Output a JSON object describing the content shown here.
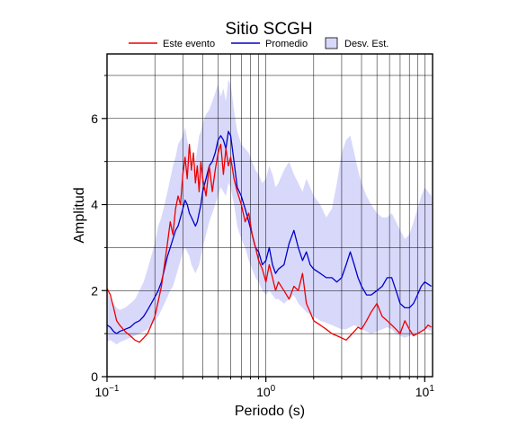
{
  "chart_data": {
    "type": "line",
    "title": "Sitio SCGH",
    "xlabel": "Periodo (s)",
    "ylabel": "Amplitud",
    "xscale": "log",
    "xlim": [
      0.1,
      11.2
    ],
    "ylim": [
      0,
      7.5
    ],
    "grid": true,
    "legend_position": "top",
    "x_ticks": [
      {
        "value": 0.1,
        "base": "10",
        "exp": "−1"
      },
      {
        "value": 1,
        "base": "10",
        "exp": "0"
      },
      {
        "value": 10,
        "base": "10",
        "exp": "1"
      }
    ],
    "y_ticks": [
      0,
      2,
      4,
      6
    ],
    "legend": {
      "event": "Este evento",
      "average": "Promedio",
      "std": "Desv. Est."
    },
    "colors": {
      "event": "#ee0000",
      "average": "#0000cc",
      "std_fill": "#d8d8fb",
      "std_stroke": "#000000"
    },
    "series": [
      {
        "name": "Este evento",
        "x": [
          0.1,
          0.105,
          0.11,
          0.115,
          0.12,
          0.13,
          0.14,
          0.15,
          0.16,
          0.17,
          0.18,
          0.19,
          0.2,
          0.21,
          0.22,
          0.23,
          0.24,
          0.25,
          0.26,
          0.27,
          0.28,
          0.29,
          0.3,
          0.31,
          0.32,
          0.33,
          0.34,
          0.35,
          0.36,
          0.37,
          0.38,
          0.39,
          0.4,
          0.42,
          0.44,
          0.46,
          0.48,
          0.5,
          0.52,
          0.54,
          0.56,
          0.58,
          0.6,
          0.63,
          0.66,
          0.7,
          0.74,
          0.78,
          0.82,
          0.86,
          0.9,
          0.95,
          1.0,
          1.05,
          1.1,
          1.15,
          1.2,
          1.3,
          1.4,
          1.5,
          1.6,
          1.7,
          1.8,
          1.9,
          2.0,
          2.2,
          2.4,
          2.6,
          2.8,
          3.0,
          3.2,
          3.4,
          3.6,
          3.8,
          4.0,
          4.3,
          4.6,
          5.0,
          5.4,
          5.8,
          6.2,
          6.6,
          7.0,
          7.5,
          8.0,
          8.5,
          9.0,
          9.5,
          10.0,
          10.5,
          11.0
        ],
        "values": [
          2.05,
          1.9,
          1.6,
          1.3,
          1.2,
          1.05,
          0.95,
          0.85,
          0.8,
          0.9,
          1.0,
          1.2,
          1.4,
          1.75,
          2.1,
          2.6,
          3.1,
          3.6,
          3.3,
          3.9,
          4.2,
          4.0,
          4.7,
          5.1,
          4.6,
          5.4,
          4.8,
          5.2,
          4.5,
          4.9,
          4.3,
          5.0,
          4.6,
          4.2,
          4.9,
          4.3,
          4.8,
          5.2,
          5.4,
          4.7,
          5.3,
          4.9,
          5.1,
          4.6,
          4.3,
          4.0,
          3.6,
          3.8,
          3.3,
          3.0,
          2.7,
          2.5,
          2.2,
          2.6,
          2.3,
          2.0,
          2.2,
          2.0,
          1.8,
          2.1,
          2.0,
          2.4,
          1.7,
          1.5,
          1.3,
          1.2,
          1.1,
          1.0,
          0.95,
          0.9,
          0.85,
          0.95,
          1.05,
          1.15,
          1.1,
          1.3,
          1.5,
          1.7,
          1.4,
          1.3,
          1.2,
          1.1,
          1.0,
          1.3,
          1.1,
          0.95,
          1.0,
          1.05,
          1.1,
          1.2,
          1.15
        ]
      },
      {
        "name": "Promedio",
        "x": [
          0.1,
          0.105,
          0.11,
          0.115,
          0.12,
          0.13,
          0.14,
          0.15,
          0.16,
          0.17,
          0.18,
          0.19,
          0.2,
          0.21,
          0.22,
          0.23,
          0.24,
          0.25,
          0.26,
          0.27,
          0.28,
          0.29,
          0.3,
          0.31,
          0.32,
          0.33,
          0.34,
          0.35,
          0.36,
          0.37,
          0.38,
          0.39,
          0.4,
          0.42,
          0.44,
          0.46,
          0.48,
          0.5,
          0.52,
          0.54,
          0.56,
          0.58,
          0.6,
          0.63,
          0.66,
          0.7,
          0.74,
          0.78,
          0.82,
          0.86,
          0.9,
          0.95,
          1.0,
          1.05,
          1.1,
          1.15,
          1.2,
          1.3,
          1.4,
          1.5,
          1.6,
          1.7,
          1.8,
          1.9,
          2.0,
          2.2,
          2.4,
          2.6,
          2.8,
          3.0,
          3.2,
          3.4,
          3.6,
          3.8,
          4.0,
          4.3,
          4.6,
          5.0,
          5.4,
          5.8,
          6.2,
          6.6,
          7.0,
          7.5,
          8.0,
          8.5,
          9.0,
          9.5,
          10.0,
          10.5,
          11.0
        ],
        "values": [
          1.2,
          1.15,
          1.05,
          1.0,
          1.05,
          1.1,
          1.15,
          1.25,
          1.3,
          1.4,
          1.55,
          1.7,
          1.85,
          2.0,
          2.2,
          2.5,
          2.8,
          3.0,
          3.2,
          3.4,
          3.5,
          3.7,
          3.9,
          4.1,
          4.0,
          3.8,
          3.7,
          3.6,
          3.5,
          3.6,
          3.8,
          4.0,
          4.3,
          4.6,
          4.9,
          5.0,
          5.2,
          5.5,
          5.6,
          5.5,
          5.3,
          5.7,
          5.6,
          5.0,
          4.4,
          4.2,
          3.9,
          3.6,
          3.3,
          3.0,
          2.9,
          2.6,
          2.7,
          3.0,
          2.6,
          2.4,
          2.5,
          2.6,
          3.1,
          3.4,
          3.0,
          2.7,
          2.9,
          2.6,
          2.5,
          2.4,
          2.3,
          2.3,
          2.2,
          2.3,
          2.6,
          2.9,
          2.6,
          2.3,
          2.1,
          1.9,
          1.9,
          2.0,
          2.1,
          2.3,
          2.3,
          2.0,
          1.7,
          1.6,
          1.6,
          1.7,
          1.9,
          2.1,
          2.2,
          2.15,
          2.1
        ]
      }
    ],
    "std_band": {
      "x": [
        0.1,
        0.105,
        0.11,
        0.115,
        0.12,
        0.13,
        0.14,
        0.15,
        0.16,
        0.17,
        0.18,
        0.19,
        0.2,
        0.21,
        0.22,
        0.23,
        0.24,
        0.25,
        0.26,
        0.27,
        0.28,
        0.29,
        0.3,
        0.31,
        0.32,
        0.33,
        0.34,
        0.35,
        0.36,
        0.37,
        0.38,
        0.39,
        0.4,
        0.42,
        0.44,
        0.46,
        0.48,
        0.5,
        0.52,
        0.54,
        0.56,
        0.58,
        0.6,
        0.63,
        0.66,
        0.7,
        0.74,
        0.78,
        0.82,
        0.86,
        0.9,
        0.95,
        1.0,
        1.05,
        1.1,
        1.15,
        1.2,
        1.3,
        1.4,
        1.5,
        1.6,
        1.7,
        1.8,
        1.9,
        2.0,
        2.2,
        2.4,
        2.6,
        2.8,
        3.0,
        3.2,
        3.4,
        3.6,
        3.8,
        4.0,
        4.3,
        4.6,
        5.0,
        5.4,
        5.8,
        6.2,
        6.6,
        7.0,
        7.5,
        8.0,
        8.5,
        9.0,
        9.5,
        10.0,
        10.5,
        11.0
      ],
      "upper": [
        2.0,
        1.8,
        1.7,
        1.6,
        1.55,
        1.6,
        1.7,
        1.8,
        2.0,
        2.2,
        2.5,
        2.8,
        3.1,
        3.5,
        3.7,
        4.0,
        4.3,
        4.6,
        4.9,
        5.1,
        5.4,
        5.5,
        5.6,
        5.8,
        5.5,
        5.2,
        4.9,
        4.8,
        5.0,
        5.3,
        5.6,
        5.7,
        5.9,
        6.1,
        6.2,
        6.4,
        6.6,
        6.8,
        6.5,
        6.7,
        6.4,
        6.9,
        6.8,
        6.2,
        5.7,
        5.4,
        5.3,
        5.2,
        5.0,
        4.8,
        4.7,
        4.5,
        4.6,
        4.9,
        4.7,
        4.4,
        4.5,
        4.8,
        5.0,
        4.7,
        4.5,
        4.3,
        4.6,
        4.4,
        4.2,
        4.0,
        3.7,
        3.9,
        4.5,
        5.2,
        5.5,
        5.6,
        5.2,
        4.8,
        4.5,
        4.2,
        4.0,
        3.8,
        3.7,
        3.7,
        3.8,
        3.6,
        3.4,
        3.2,
        3.3,
        3.6,
        3.9,
        4.2,
        4.4,
        4.3,
        4.2
      ],
      "lower": [
        0.8,
        0.85,
        0.8,
        0.75,
        0.8,
        0.85,
        0.9,
        0.95,
        1.0,
        1.05,
        1.1,
        1.2,
        1.3,
        1.4,
        1.55,
        1.7,
        1.85,
        2.0,
        2.1,
        2.3,
        2.5,
        2.7,
        2.9,
        3.0,
        2.9,
        2.8,
        2.6,
        2.5,
        2.4,
        2.5,
        2.6,
        2.8,
        3.0,
        3.3,
        3.6,
        3.8,
        4.0,
        4.2,
        4.4,
        4.3,
        4.2,
        4.5,
        4.4,
        4.0,
        3.5,
        3.2,
        3.0,
        2.7,
        2.5,
        2.3,
        2.2,
        2.0,
        1.9,
        2.0,
        1.9,
        1.8,
        1.8,
        1.7,
        1.8,
        1.9,
        1.7,
        1.6,
        1.5,
        1.45,
        1.4,
        1.3,
        1.25,
        1.2,
        1.15,
        1.1,
        1.1,
        1.15,
        1.2,
        1.15,
        1.1,
        1.05,
        1.0,
        1.05,
        1.1,
        1.15,
        1.1,
        1.0,
        0.95,
        0.9,
        0.95,
        0.95,
        1.0,
        1.05,
        1.1,
        1.1,
        1.05
      ]
    }
  }
}
